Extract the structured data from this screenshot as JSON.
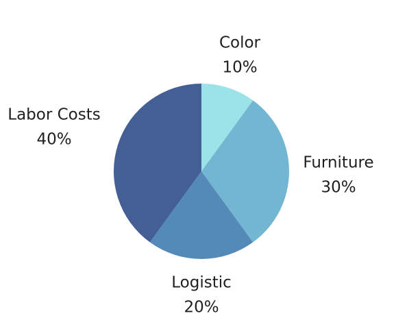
{
  "chart_data": {
    "type": "pie",
    "title": "",
    "slices": [
      {
        "label": "Color",
        "value": 10,
        "value_text": "10%",
        "color": "#9be3e8"
      },
      {
        "label": "Furniture",
        "value": 30,
        "value_text": "30%",
        "color": "#72b6d1"
      },
      {
        "label": "Logistic",
        "value": 20,
        "value_text": "20%",
        "color": "#548ab8"
      },
      {
        "label": "Labor Costs",
        "value": 40,
        "value_text": "40%",
        "color": "#445f96"
      }
    ],
    "start_angle": "12 o'clock",
    "direction": "clockwise",
    "legend": "none",
    "labels": "outside"
  }
}
